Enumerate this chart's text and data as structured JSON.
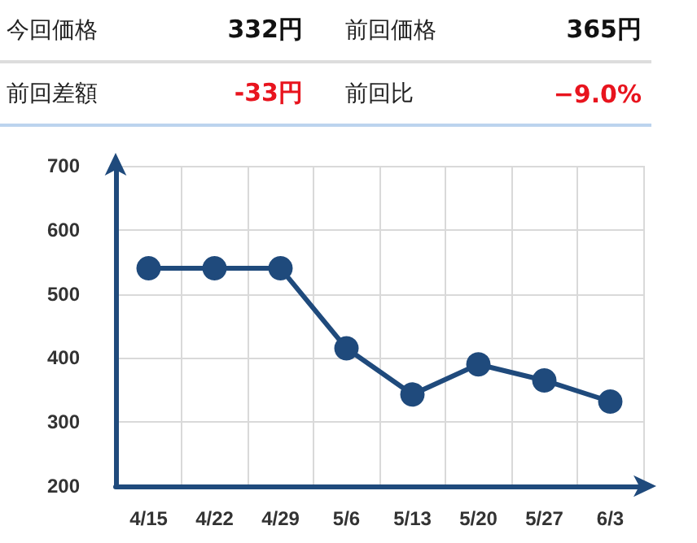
{
  "chart_data": {
    "type": "line",
    "annotations": [
      "今回価格",
      "332円",
      "前回価格",
      "365円",
      "前回差額",
      "-33円",
      "前回比",
      "−9.0%"
    ],
    "categories": [
      "4/15",
      "4/22",
      "4/29",
      "5/6",
      "5/13",
      "5/20",
      "5/27",
      "6/3"
    ],
    "series": [
      {
        "color": "#1f4a7c",
        "values": [
          540,
          540,
          540,
          415,
          343,
          390,
          365,
          332
        ]
      }
    ],
    "ylim": [
      200,
      700
    ],
    "yticks": [
      200,
      300,
      400,
      500,
      600,
      700
    ],
    "grid": true,
    "marker": "circle",
    "line_style": "solid"
  }
}
